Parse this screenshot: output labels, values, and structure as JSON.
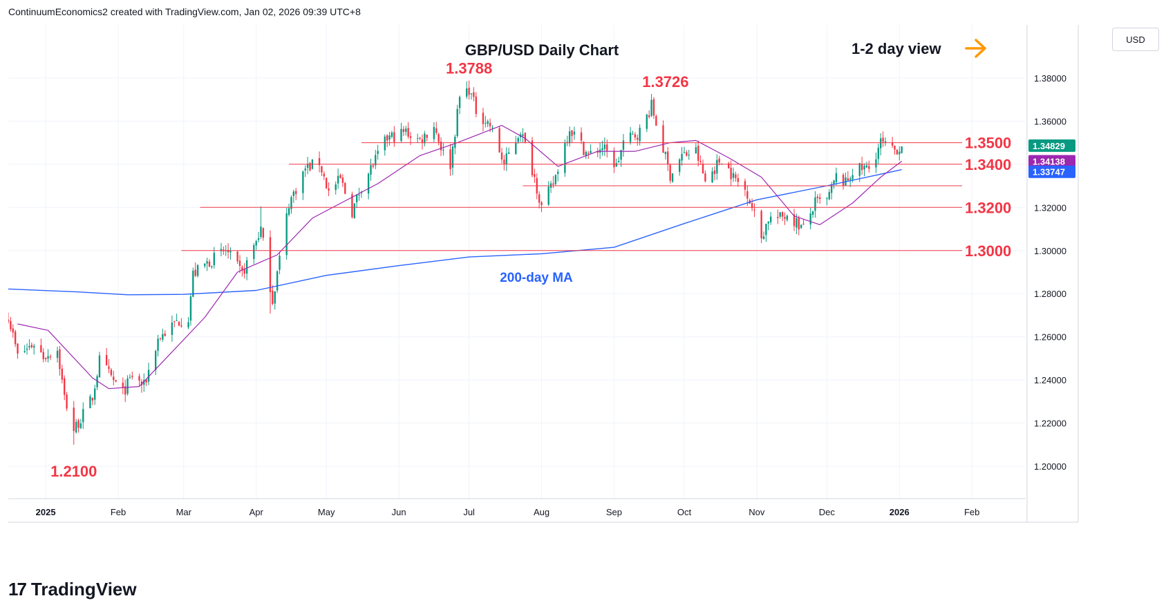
{
  "byline": "ContinuumEconomics2 created with TradingView.com, Jan 02, 2026 09:39 UTC+8",
  "currency_button": "USD",
  "brand": {
    "mark": "17",
    "name": "TradingView"
  },
  "colors": {
    "up": "#089981",
    "down": "#f23645",
    "level": "#f23645",
    "ma200": "#2962ff",
    "ma20": "#9c27b0",
    "arrow": "#ff9800",
    "grid": "#f0f3fa",
    "axis_text": "#131722",
    "last_price_bg": "#089981",
    "ma20_price_bg": "#9c27b0",
    "ma200_price_bg": "#2962ff"
  },
  "icons": {
    "view_arrow": "orange-right-arrow-icon"
  },
  "chart_data": {
    "type": "candlestick",
    "title": "GBP/USD Daily Chart",
    "view_label": "1-2 day view",
    "ma_label": "200-day MA",
    "ylim": [
      1.185,
      1.4046
    ],
    "y_ticks": [
      1.2,
      1.22,
      1.24,
      1.26,
      1.28,
      1.3,
      1.32,
      1.34,
      1.36,
      1.38
    ],
    "y_tick_labels": [
      "1.20000",
      "1.22000",
      "1.24000",
      "1.26000",
      "1.28000",
      "1.30000",
      "1.32000",
      "1.34000",
      "1.36000",
      "1.38000"
    ],
    "x_start": "2024-12-16",
    "x_end": "2026-02-24",
    "x_ticks": [
      {
        "date": "2025-01-01",
        "label": "2025",
        "bold": true
      },
      {
        "date": "2025-02-01",
        "label": "Feb"
      },
      {
        "date": "2025-03-01",
        "label": "Mar"
      },
      {
        "date": "2025-04-01",
        "label": "Apr"
      },
      {
        "date": "2025-05-01",
        "label": "May"
      },
      {
        "date": "2025-06-01",
        "label": "Jun"
      },
      {
        "date": "2025-07-01",
        "label": "Jul"
      },
      {
        "date": "2025-08-01",
        "label": "Aug"
      },
      {
        "date": "2025-09-01",
        "label": "Sep"
      },
      {
        "date": "2025-10-01",
        "label": "Oct"
      },
      {
        "date": "2025-11-01",
        "label": "Nov"
      },
      {
        "date": "2025-12-01",
        "label": "Dec"
      },
      {
        "date": "2026-01-01",
        "label": "2026",
        "bold": true
      },
      {
        "date": "2026-02-01",
        "label": "Feb"
      }
    ],
    "levels": [
      {
        "value": 1.35,
        "label": "1.3500",
        "from": "2025-05-16"
      },
      {
        "value": 1.34,
        "label": "1.3400",
        "from": "2025-04-15"
      },
      {
        "value": 1.33,
        "label": "",
        "from": "2025-07-24"
      },
      {
        "value": 1.32,
        "label": "1.3200",
        "from": "2025-03-08"
      },
      {
        "value": 1.3,
        "label": "1.3000",
        "from": "2025-02-28"
      }
    ],
    "annotations": [
      {
        "text": "1.3788",
        "date": "2025-07-01",
        "value": 1.3788
      },
      {
        "text": "1.3726",
        "date": "2025-09-23",
        "value": 1.3726
      },
      {
        "text": "1.2100",
        "date": "2025-01-13",
        "value": 1.21
      }
    ],
    "price_labels": [
      {
        "name": "last",
        "text": "1.34829",
        "value": 1.34829
      },
      {
        "name": "ma20",
        "text": "1.34138",
        "value": 1.34138
      },
      {
        "name": "ma200",
        "text": "1.33747",
        "value": 1.33747
      }
    ],
    "anchors": [
      [
        "2024-12-16",
        1.27
      ],
      [
        "2024-12-20",
        1.251
      ],
      [
        "2024-12-27",
        1.257
      ],
      [
        "2024-12-31",
        1.251
      ],
      [
        "2025-01-06",
        1.254
      ],
      [
        "2025-01-09",
        1.232
      ],
      [
        "2025-01-13",
        1.217
      ],
      [
        "2025-01-16",
        1.222
      ],
      [
        "2025-01-21",
        1.232
      ],
      [
        "2025-01-24",
        1.249
      ],
      [
        "2025-01-31",
        1.238
      ],
      [
        "2025-02-03",
        1.234
      ],
      [
        "2025-02-07",
        1.242
      ],
      [
        "2025-02-12",
        1.237
      ],
      [
        "2025-02-18",
        1.259
      ],
      [
        "2025-02-26",
        1.267
      ],
      [
        "2025-03-03",
        1.269
      ],
      [
        "2025-03-05",
        1.289
      ],
      [
        "2025-03-12",
        1.295
      ],
      [
        "2025-03-19",
        1.3
      ],
      [
        "2025-03-26",
        1.289
      ],
      [
        "2025-04-03",
        1.31
      ],
      [
        "2025-04-08",
        1.277
      ],
      [
        "2025-04-15",
        1.322
      ],
      [
        "2025-04-22",
        1.338
      ],
      [
        "2025-04-28",
        1.341
      ],
      [
        "2025-05-02",
        1.327
      ],
      [
        "2025-05-07",
        1.333
      ],
      [
        "2025-05-12",
        1.318
      ],
      [
        "2025-05-16",
        1.33
      ],
      [
        "2025-05-27",
        1.352
      ],
      [
        "2025-06-04",
        1.355
      ],
      [
        "2025-06-10",
        1.351
      ],
      [
        "2025-06-16",
        1.358
      ],
      [
        "2025-06-20",
        1.345
      ],
      [
        "2025-06-23",
        1.34
      ],
      [
        "2025-06-27",
        1.371
      ],
      [
        "2025-07-01",
        1.375
      ],
      [
        "2025-07-04",
        1.365
      ],
      [
        "2025-07-10",
        1.358
      ],
      [
        "2025-07-16",
        1.34
      ],
      [
        "2025-07-23",
        1.356
      ],
      [
        "2025-07-29",
        1.334
      ],
      [
        "2025-08-01",
        1.32
      ],
      [
        "2025-08-06",
        1.331
      ],
      [
        "2025-08-13",
        1.357
      ],
      [
        "2025-08-21",
        1.344
      ],
      [
        "2025-08-27",
        1.348
      ],
      [
        "2025-09-02",
        1.339
      ],
      [
        "2025-09-05",
        1.35
      ],
      [
        "2025-09-12",
        1.355
      ],
      [
        "2025-09-17",
        1.367
      ],
      [
        "2025-09-25",
        1.335
      ],
      [
        "2025-09-30",
        1.344
      ],
      [
        "2025-10-06",
        1.346
      ],
      [
        "2025-10-10",
        1.332
      ],
      [
        "2025-10-17",
        1.343
      ],
      [
        "2025-10-22",
        1.334
      ],
      [
        "2025-10-28",
        1.327
      ],
      [
        "2025-11-03",
        1.306
      ],
      [
        "2025-11-06",
        1.315
      ],
      [
        "2025-11-11",
        1.315
      ],
      [
        "2025-11-14",
        1.317
      ],
      [
        "2025-11-19",
        1.312
      ],
      [
        "2025-11-21",
        1.31
      ],
      [
        "2025-11-26",
        1.322
      ],
      [
        "2025-12-01",
        1.323
      ],
      [
        "2025-12-05",
        1.334
      ],
      [
        "2025-12-09",
        1.331
      ],
      [
        "2025-12-12",
        1.337
      ],
      [
        "2025-12-17",
        1.338
      ],
      [
        "2025-12-19",
        1.338
      ],
      [
        "2025-12-24",
        1.35
      ],
      [
        "2025-12-29",
        1.346
      ],
      [
        "2026-01-02",
        1.3483
      ]
    ],
    "ma20_anchors": [
      [
        "2024-12-20",
        1.266
      ],
      [
        "2025-01-02",
        1.263
      ],
      [
        "2025-01-21",
        1.241
      ],
      [
        "2025-01-28",
        1.236
      ],
      [
        "2025-02-10",
        1.237
      ],
      [
        "2025-02-24",
        1.253
      ],
      [
        "2025-03-10",
        1.269
      ],
      [
        "2025-03-24",
        1.29
      ],
      [
        "2025-04-10",
        1.298
      ],
      [
        "2025-04-25",
        1.315
      ],
      [
        "2025-05-09",
        1.323
      ],
      [
        "2025-05-23",
        1.331
      ],
      [
        "2025-06-10",
        1.344
      ],
      [
        "2025-06-26",
        1.35
      ],
      [
        "2025-07-15",
        1.358
      ],
      [
        "2025-07-25",
        1.352
      ],
      [
        "2025-08-08",
        1.339
      ],
      [
        "2025-08-25",
        1.346
      ],
      [
        "2025-09-10",
        1.346
      ],
      [
        "2025-09-25",
        1.35
      ],
      [
        "2025-10-06",
        1.351
      ],
      [
        "2025-10-20",
        1.343
      ],
      [
        "2025-11-03",
        1.334
      ],
      [
        "2025-11-17",
        1.316
      ],
      [
        "2025-11-28",
        1.312
      ],
      [
        "2025-12-12",
        1.322
      ],
      [
        "2025-12-24",
        1.334
      ],
      [
        "2026-01-02",
        1.3414
      ]
    ],
    "ma200_anchors": [
      [
        "2024-12-16",
        1.2822
      ],
      [
        "2025-01-15",
        1.2808
      ],
      [
        "2025-02-05",
        1.2795
      ],
      [
        "2025-03-01",
        1.2797
      ],
      [
        "2025-04-01",
        1.2815
      ],
      [
        "2025-05-01",
        1.2885
      ],
      [
        "2025-06-01",
        1.293
      ],
      [
        "2025-07-01",
        1.297
      ],
      [
        "2025-08-01",
        1.2985
      ],
      [
        "2025-09-01",
        1.3015
      ],
      [
        "2025-10-01",
        1.3125
      ],
      [
        "2025-11-01",
        1.3235
      ],
      [
        "2025-12-01",
        1.33
      ],
      [
        "2026-01-02",
        1.3375
      ]
    ]
  }
}
